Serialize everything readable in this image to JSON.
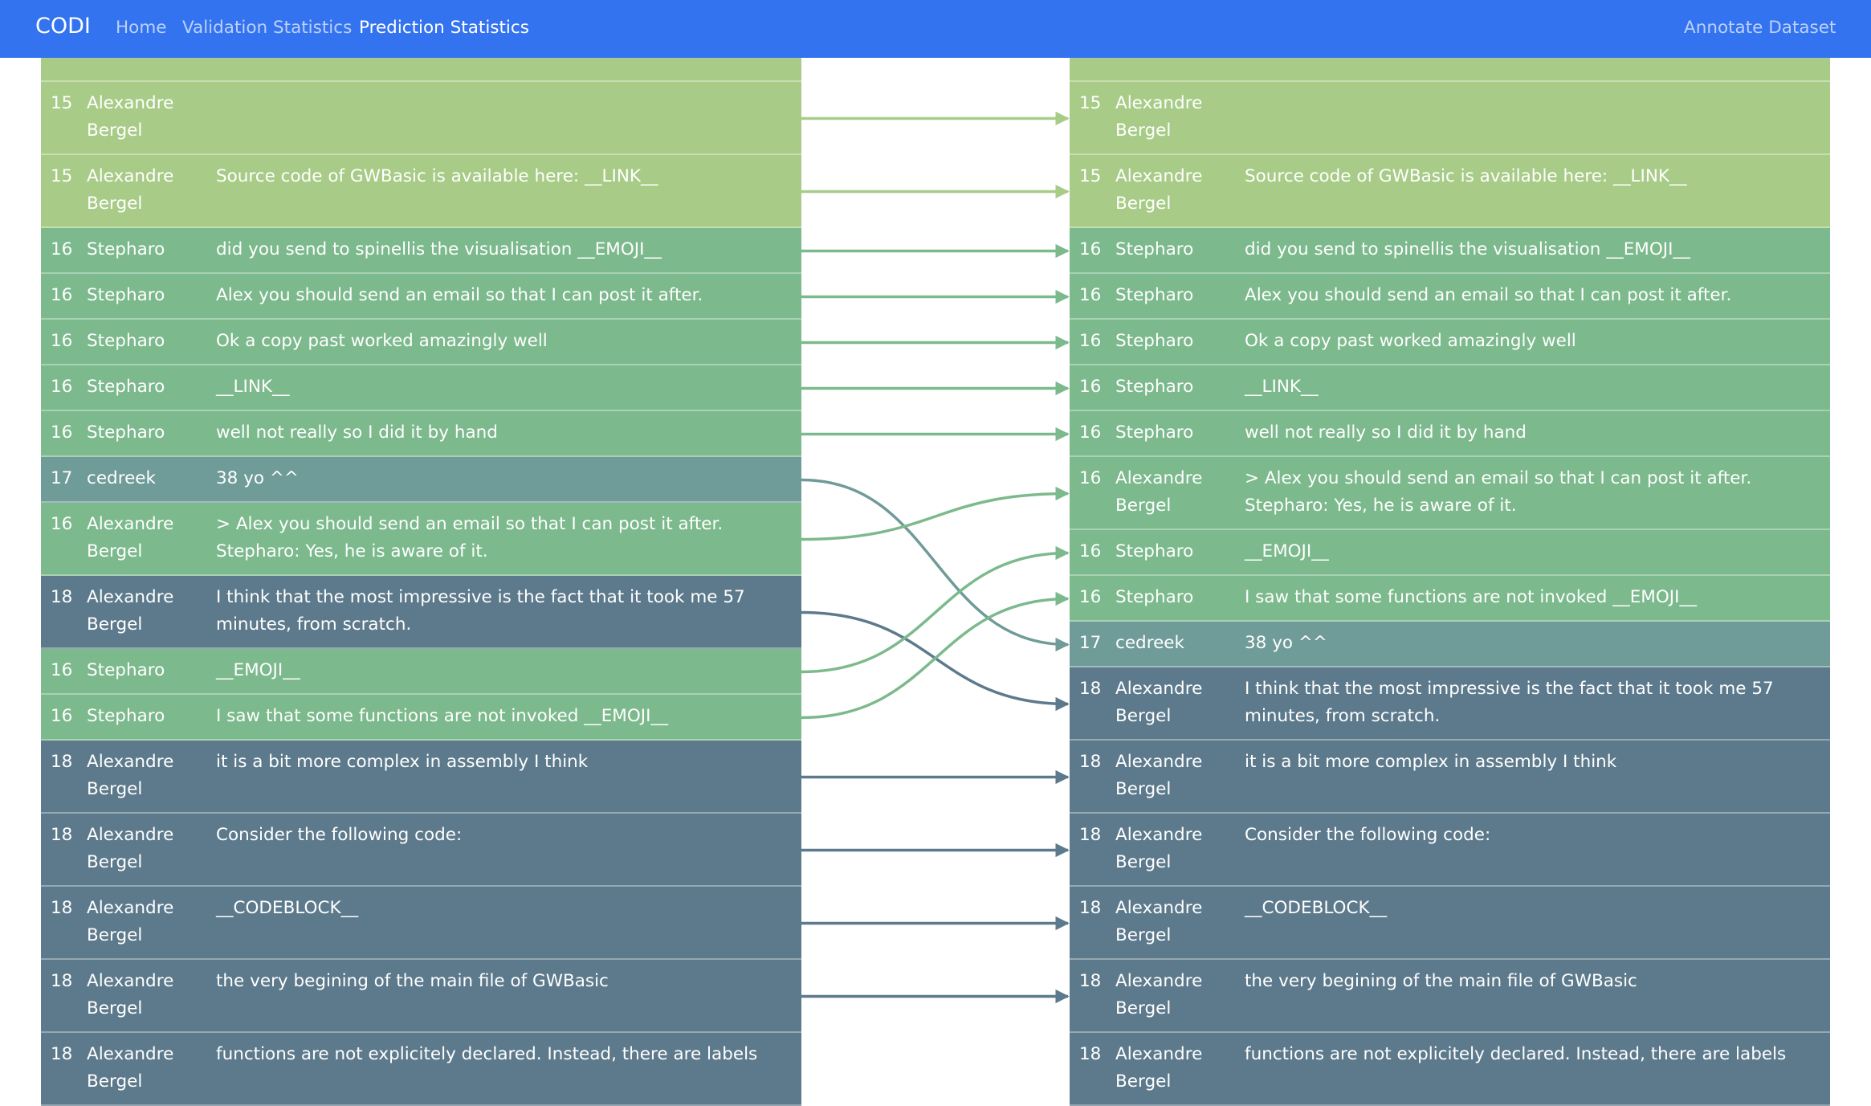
{
  "nav": {
    "brand": "CODI",
    "links": [
      "Home",
      "Validation Statistics",
      "Prediction Statistics"
    ],
    "right_link": "Annotate Dataset"
  },
  "colors": {
    "15": "#a8cc88",
    "16": "#7cb98c",
    "17": "#6f9b98",
    "18": "#5d7a8c"
  },
  "left_rows": [
    {
      "num": "15",
      "user": "Alexandre Bergel",
      "msg": ""
    },
    {
      "num": "15",
      "user": "Alexandre Bergel",
      "msg": ""
    },
    {
      "num": "15",
      "user": "Alexandre Bergel",
      "msg": "Source code of GWBasic is available here: __LINK__"
    },
    {
      "num": "16",
      "user": "Stepharo",
      "msg": "did you send to spinellis the visualisation __EMOJI__"
    },
    {
      "num": "16",
      "user": "Stepharo",
      "msg": "Alex you should send an email so that I can post it after."
    },
    {
      "num": "16",
      "user": "Stepharo",
      "msg": "Ok a copy past worked amazingly well"
    },
    {
      "num": "16",
      "user": "Stepharo",
      "msg": "__LINK__"
    },
    {
      "num": "16",
      "user": "Stepharo",
      "msg": "well not really so I did it by hand"
    },
    {
      "num": "17",
      "user": "cedreek",
      "msg": "38 yo ^^"
    },
    {
      "num": "16",
      "user": "Alexandre Bergel",
      "msg": "> Alex you should send an email so that I can post it after. Stepharo: Yes, he is aware of it."
    },
    {
      "num": "18",
      "user": "Alexandre Bergel",
      "msg": "I think that the most impressive is the fact that it took me 57 minutes, from scratch."
    },
    {
      "num": "16",
      "user": "Stepharo",
      "msg": "__EMOJI__"
    },
    {
      "num": "16",
      "user": "Stepharo",
      "msg": "I saw that some functions are not invoked __EMOJI__"
    },
    {
      "num": "18",
      "user": "Alexandre Bergel",
      "msg": "it is a bit more complex in assembly I think"
    },
    {
      "num": "18",
      "user": "Alexandre Bergel",
      "msg": "Consider the following code:"
    },
    {
      "num": "18",
      "user": "Alexandre Bergel",
      "msg": "__CODEBLOCK__"
    },
    {
      "num": "18",
      "user": "Alexandre Bergel",
      "msg": "the very begining of the main file of GWBasic"
    },
    {
      "num": "18",
      "user": "Alexandre Bergel",
      "msg": "functions are not explicitely declared. Instead, there are labels"
    }
  ],
  "right_rows": [
    {
      "num": "15",
      "user": "Alexandre Bergel",
      "msg": ""
    },
    {
      "num": "15",
      "user": "Alexandre Bergel",
      "msg": ""
    },
    {
      "num": "15",
      "user": "Alexandre Bergel",
      "msg": "Source code of GWBasic is available here: __LINK__"
    },
    {
      "num": "16",
      "user": "Stepharo",
      "msg": "did you send to spinellis the visualisation __EMOJI__"
    },
    {
      "num": "16",
      "user": "Stepharo",
      "msg": "Alex you should send an email so that I can post it after."
    },
    {
      "num": "16",
      "user": "Stepharo",
      "msg": "Ok a copy past worked amazingly well"
    },
    {
      "num": "16",
      "user": "Stepharo",
      "msg": "__LINK__"
    },
    {
      "num": "16",
      "user": "Stepharo",
      "msg": "well not really so I did it by hand"
    },
    {
      "num": "16",
      "user": "Alexandre Bergel",
      "msg": "> Alex you should send an email so that I can post it after. Stepharo: Yes, he is aware of it."
    },
    {
      "num": "16",
      "user": "Stepharo",
      "msg": "__EMOJI__"
    },
    {
      "num": "16",
      "user": "Stepharo",
      "msg": "I saw that some functions are not invoked __EMOJI__"
    },
    {
      "num": "17",
      "user": "cedreek",
      "msg": "38 yo ^^"
    },
    {
      "num": "18",
      "user": "Alexandre Bergel",
      "msg": "I think that the most impressive is the fact that it took me 57 minutes, from scratch."
    },
    {
      "num": "18",
      "user": "Alexandre Bergel",
      "msg": "it is a bit more complex in assembly I think"
    },
    {
      "num": "18",
      "user": "Alexandre Bergel",
      "msg": "Consider the following code:"
    },
    {
      "num": "18",
      "user": "Alexandre Bergel",
      "msg": "__CODEBLOCK__"
    },
    {
      "num": "18",
      "user": "Alexandre Bergel",
      "msg": "the very begining of the main file of GWBasic"
    },
    {
      "num": "18",
      "user": "Alexandre Bergel",
      "msg": "functions are not explicitely declared. Instead, there are labels"
    }
  ],
  "links": [
    {
      "from": 1,
      "to": 1
    },
    {
      "from": 2,
      "to": 2
    },
    {
      "from": 3,
      "to": 3
    },
    {
      "from": 4,
      "to": 4
    },
    {
      "from": 5,
      "to": 5
    },
    {
      "from": 6,
      "to": 6
    },
    {
      "from": 7,
      "to": 7
    },
    {
      "from": 8,
      "to": 11
    },
    {
      "from": 9,
      "to": 8
    },
    {
      "from": 10,
      "to": 12
    },
    {
      "from": 11,
      "to": 9
    },
    {
      "from": 12,
      "to": 10
    },
    {
      "from": 13,
      "to": 13
    },
    {
      "from": 14,
      "to": 14
    },
    {
      "from": 15,
      "to": 15
    },
    {
      "from": 16,
      "to": 16
    }
  ]
}
